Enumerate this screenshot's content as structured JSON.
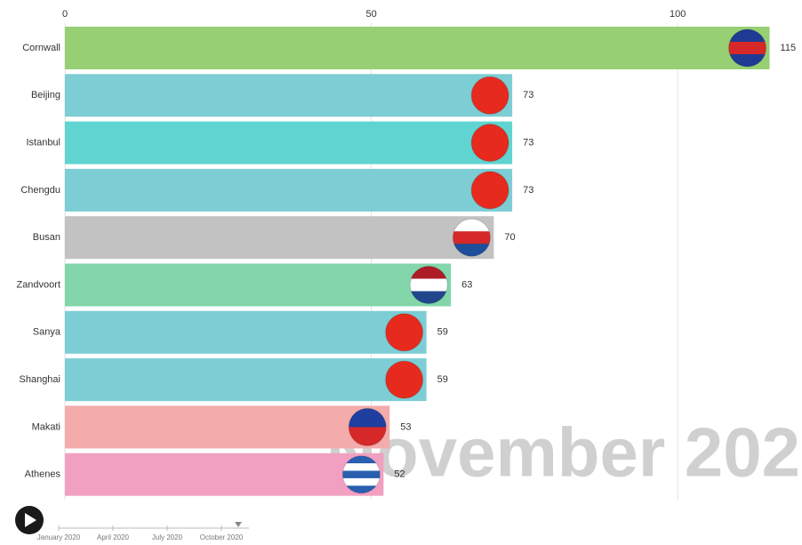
{
  "chart_data": {
    "type": "bar",
    "orientation": "horizontal",
    "categories": [
      "Cornwall",
      "Beijing",
      "Istanbul",
      "Chengdu",
      "Busan",
      "Zandvoort",
      "Sanya",
      "Shanghai",
      "Makati",
      "Athenes"
    ],
    "values": [
      115,
      73,
      73,
      73,
      70,
      63,
      59,
      59,
      53,
      52
    ],
    "colors": [
      "#97cf74",
      "#7ccdd4",
      "#5fd4d0",
      "#7ccdd4",
      "#c2c2c2",
      "#82d6a9",
      "#7ccdd4",
      "#7ccdd4",
      "#f3abab",
      "#f2a0c2"
    ],
    "flag_colors": [
      [
        "#1f3a93",
        "#d62828",
        "#1f3a93"
      ],
      [
        "#e62a1e"
      ],
      [
        "#e62a1e"
      ],
      [
        "#e62a1e"
      ],
      [
        "#ffffff",
        "#d62828",
        "#1f4e9a"
      ],
      [
        "#ae1c28",
        "#ffffff",
        "#21468b"
      ],
      [
        "#e62a1e"
      ],
      [
        "#e62a1e"
      ],
      [
        "#1f3fa0",
        "#d62828"
      ],
      [
        "#2a5fb0",
        "#ffffff",
        "#2a5fb0",
        "#ffffff",
        "#2a5fb0"
      ]
    ],
    "xlim": [
      0,
      120
    ],
    "xticks": [
      0,
      50,
      100
    ],
    "grid": true,
    "date_label": "November 202",
    "timeline": [
      "January 2020",
      "April 2020",
      "July 2020",
      "October 2020"
    ]
  }
}
